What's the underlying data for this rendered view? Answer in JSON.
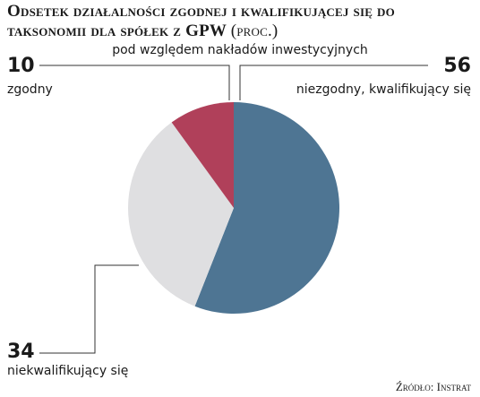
{
  "title": "Odsetek działalności zgodnej i kwalifikującej się do taksonomii dla spółek z GPW",
  "unit": "(proc.)",
  "subtitle": "pod względem nakładów inwestycyjnych",
  "source": "Źródło: Instrat",
  "colors": {
    "zgodny": "#b0405a",
    "niezgodny": "#4e7593",
    "niekwalifikujacy": "#dfdfe1",
    "leader": "#333333"
  },
  "chart_data": {
    "type": "pie",
    "title": "Odsetek działalności zgodnej i kwalifikującej się do taksonomii dla spółek z GPW (proc.)",
    "subtitle": "pod względem nakładów inwestycyjnych",
    "slices": [
      {
        "label": "niezgodny, kwalifikujący się",
        "value": 56,
        "color": "#4e7593"
      },
      {
        "label": "niekwalifikujący się",
        "value": 34,
        "color": "#dfdfe1"
      },
      {
        "label": "zgodny",
        "value": 10,
        "color": "#b0405a"
      }
    ]
  }
}
